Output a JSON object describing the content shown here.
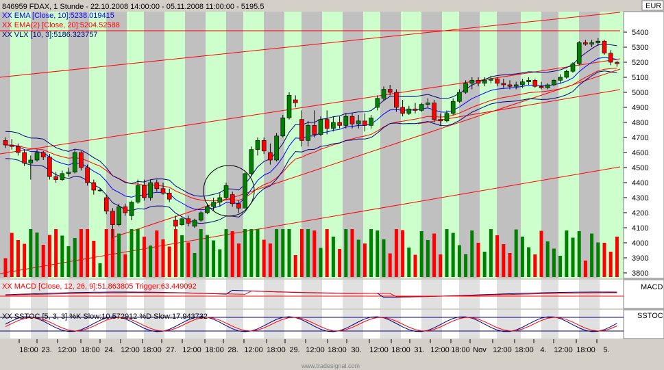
{
  "header": {
    "title": "846959 FDAX, 1 Stunde - 22.10.2008 14:00:00 - 05.11.2008 11:00:00 - 5195.5",
    "currency": "EUR"
  },
  "legend": {
    "ema10": "XX EMA [Close, 10]:5238.019415",
    "ema20": "XX EMA(2) [Close, 20]:5204.52588",
    "vlx": "XX VLX [10, 3]:5186.323757"
  },
  "macd_panel": {
    "label": "XX MACD [Close, 12, 26, 9]:51.863805 Trigger:63.449092",
    "tag": "MACD"
  },
  "sstoc_panel": {
    "label": "XX SSTOC [5, 3, 3] %K Slow:10.572912 %D Slow:17.943732",
    "tag": "SSTOC"
  },
  "watermark": "www.tradesignal.com",
  "colors": {
    "bull": "#008000",
    "bear": "#ff0000",
    "ema10": "#0000ff",
    "ema20": "#ff0000",
    "vlx": "#000080",
    "day_band_a": "#c0c0c0",
    "day_band_b": "#ccffcc"
  },
  "chart_data": {
    "type": "candlestick",
    "y_ticks": [
      3800,
      3900,
      4000,
      4100,
      4200,
      4300,
      4400,
      4500,
      4600,
      4700,
      4800,
      4900,
      5000,
      5100,
      5200,
      5300,
      5400
    ],
    "x_ticks": [
      "18:00",
      "23.",
      "12:00",
      "18:00",
      "24.",
      "12:00",
      "18:00",
      "27.",
      "12:00",
      "18:00",
      "28.",
      "12:00",
      "18:00",
      "29.",
      "12:00",
      "18:00",
      "30.",
      "12:00",
      "18:00",
      "31.",
      "12:00",
      "18:00",
      "Nov",
      "12:00",
      "18:00",
      "4.",
      "12:00",
      "18:00",
      "5."
    ],
    "ohlc": [
      [
        4680,
        4700,
        4630,
        4650
      ],
      [
        4650,
        4690,
        4620,
        4640
      ],
      [
        4640,
        4660,
        4580,
        4600
      ],
      [
        4600,
        4620,
        4510,
        4530
      ],
      [
        4530,
        4580,
        4420,
        4550
      ],
      [
        4550,
        4620,
        4540,
        4600
      ],
      [
        4600,
        4610,
        4550,
        4570
      ],
      [
        4570,
        4590,
        4420,
        4440
      ],
      [
        4440,
        4470,
        4400,
        4420
      ],
      [
        4420,
        4480,
        4410,
        4460
      ],
      [
        4460,
        4500,
        4440,
        4470
      ],
      [
        4470,
        4620,
        4460,
        4600
      ],
      [
        4600,
        4610,
        4480,
        4500
      ],
      [
        4500,
        4520,
        4380,
        4400
      ],
      [
        4400,
        4420,
        4320,
        4350
      ],
      [
        4350,
        4360,
        4340,
        4350
      ],
      [
        4300,
        4320,
        4190,
        4210
      ],
      [
        4210,
        4230,
        4030,
        4120
      ],
      [
        4120,
        4260,
        4110,
        4240
      ],
      [
        4240,
        4260,
        4180,
        4200
      ],
      [
        4180,
        4280,
        4150,
        4270
      ],
      [
        4270,
        4420,
        4260,
        4380
      ],
      [
        4380,
        4420,
        4280,
        4300
      ],
      [
        4300,
        4420,
        4280,
        4400
      ],
      [
        4400,
        4420,
        4340,
        4360
      ],
      [
        4360,
        4400,
        4320,
        4330
      ],
      [
        4330,
        4360,
        4270,
        4290
      ],
      [
        4150,
        4180,
        4090,
        4110
      ],
      [
        4120,
        4170,
        4110,
        4160
      ],
      [
        4160,
        4180,
        4110,
        4130
      ],
      [
        4110,
        4160,
        4100,
        4150
      ],
      [
        4150,
        4210,
        4140,
        4200
      ],
      [
        4200,
        4260,
        4190,
        4240
      ],
      [
        4240,
        4300,
        4210,
        4270
      ],
      [
        4270,
        4330,
        4240,
        4300
      ],
      [
        4300,
        4400,
        4290,
        4380
      ],
      [
        4320,
        4340,
        4240,
        4260
      ],
      [
        4260,
        4280,
        4200,
        4230
      ],
      [
        4230,
        4480,
        4230,
        4460
      ],
      [
        4460,
        4640,
        4440,
        4620
      ],
      [
        4620,
        4700,
        4580,
        4680
      ],
      [
        4680,
        4700,
        4590,
        4610
      ],
      [
        4600,
        4660,
        4520,
        4550
      ],
      [
        4550,
        4730,
        4540,
        4710
      ],
      [
        4710,
        4850,
        4700,
        4830
      ],
      [
        4830,
        5000,
        4820,
        4980
      ],
      [
        4950,
        4980,
        4900,
        4930
      ],
      [
        4820,
        4880,
        4640,
        4680
      ],
      [
        4680,
        4810,
        4640,
        4780
      ],
      [
        4780,
        4880,
        4700,
        4720
      ],
      [
        4720,
        4840,
        4710,
        4820
      ],
      [
        4820,
        4880,
        4720,
        4760
      ],
      [
        4760,
        4840,
        4740,
        4800
      ],
      [
        4800,
        4840,
        4760,
        4780
      ],
      [
        4780,
        4860,
        4760,
        4840
      ],
      [
        4840,
        4860,
        4760,
        4790
      ],
      [
        4790,
        4850,
        4760,
        4810
      ],
      [
        4810,
        4860,
        4740,
        4780
      ],
      [
        4780,
        4850,
        4760,
        4830
      ],
      [
        4900,
        4980,
        4880,
        4960
      ],
      [
        4960,
        5040,
        4940,
        5020
      ],
      [
        5020,
        5050,
        4980,
        5000
      ],
      [
        5000,
        5020,
        4870,
        4900
      ],
      [
        4900,
        4950,
        4840,
        4860
      ],
      [
        4860,
        4910,
        4850,
        4890
      ],
      [
        4890,
        4930,
        4860,
        4880
      ],
      [
        4880,
        4930,
        4870,
        4920
      ],
      [
        4920,
        4960,
        4900,
        4930
      ],
      [
        4930,
        4950,
        4800,
        4820
      ],
      [
        4820,
        4860,
        4780,
        4810
      ],
      [
        4810,
        4880,
        4800,
        4860
      ],
      [
        4860,
        4960,
        4850,
        4940
      ],
      [
        4940,
        5020,
        4930,
        5000
      ],
      [
        5000,
        5080,
        4990,
        5060
      ],
      [
        5060,
        5100,
        5020,
        5080
      ],
      [
        5080,
        5100,
        5040,
        5060
      ],
      [
        5060,
        5100,
        5040,
        5080
      ],
      [
        5080,
        5110,
        5060,
        5090
      ],
      [
        5090,
        5100,
        5040,
        5060
      ],
      [
        5060,
        5090,
        5030,
        5050
      ],
      [
        5050,
        5080,
        5020,
        5040
      ],
      [
        5040,
        5070,
        5020,
        5050
      ],
      [
        5050,
        5090,
        5030,
        5070
      ],
      [
        5070,
        5100,
        5050,
        5080
      ],
      [
        5080,
        5090,
        5030,
        5040
      ],
      [
        5040,
        5070,
        5020,
        5030
      ],
      [
        5030,
        5060,
        5020,
        5050
      ],
      [
        5050,
        5090,
        5040,
        5080
      ],
      [
        5080,
        5120,
        5060,
        5100
      ],
      [
        5100,
        5150,
        5090,
        5140
      ],
      [
        5140,
        5200,
        5130,
        5190
      ],
      [
        5190,
        5340,
        5180,
        5330
      ],
      [
        5330,
        5350,
        5310,
        5320
      ],
      [
        5320,
        5350,
        5300,
        5330
      ],
      [
        5330,
        5360,
        5310,
        5340
      ],
      [
        5340,
        5350,
        5250,
        5260
      ],
      [
        5260,
        5280,
        5180,
        5200
      ],
      [
        5200,
        5210,
        5170,
        5190
      ]
    ],
    "volume_max": 100
  }
}
